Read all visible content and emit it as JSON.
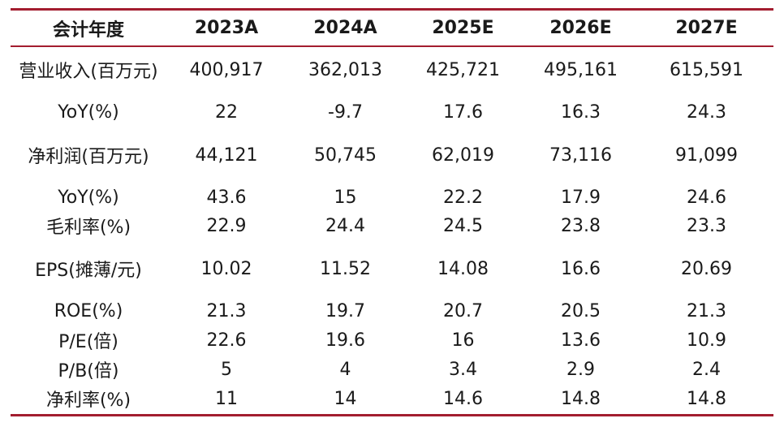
{
  "table": {
    "headers": [
      "会计年度",
      "2023A",
      "2024A",
      "2025E",
      "2026E",
      "2027E"
    ],
    "rows": [
      {
        "label": "营业收入(百万元)",
        "values": [
          "400,917",
          "362,013",
          "425,721",
          "495,161",
          "615,591"
        ]
      },
      {
        "label": "YoY(%)",
        "values": [
          "22",
          "-9.7",
          "17.6",
          "16.3",
          "24.3"
        ]
      },
      {
        "label": "净利润(百万元)",
        "values": [
          "44,121",
          "50,745",
          "62,019",
          "73,116",
          "91,099"
        ]
      },
      {
        "label": "YoY(%)",
        "values": [
          "43.6",
          "15",
          "22.2",
          "17.9",
          "24.6"
        ]
      },
      {
        "label": "毛利率(%)",
        "values": [
          "22.9",
          "24.4",
          "24.5",
          "23.8",
          "23.3"
        ]
      },
      {
        "label": "EPS(摊薄/元)",
        "values": [
          "10.02",
          "11.52",
          "14.08",
          "16.6",
          "20.69"
        ]
      },
      {
        "label": "ROE(%)",
        "values": [
          "21.3",
          "19.7",
          "20.7",
          "20.5",
          "21.3"
        ]
      },
      {
        "label": "P/E(倍)",
        "values": [
          "22.6",
          "19.6",
          "16",
          "13.6",
          "10.9"
        ]
      },
      {
        "label": "P/B(倍)",
        "values": [
          "5",
          "4",
          "3.4",
          "2.9",
          "2.4"
        ]
      },
      {
        "label": "净利率(%)",
        "values": [
          "11",
          "14",
          "14.6",
          "14.8",
          "14.8"
        ]
      }
    ]
  },
  "colors": {
    "rule": "#a31d2f",
    "text": "#1a1a1a"
  }
}
